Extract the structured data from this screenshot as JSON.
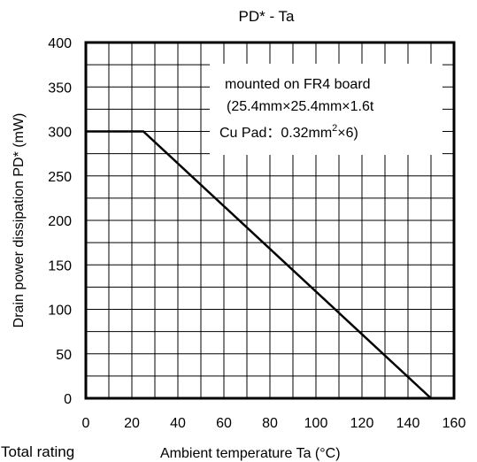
{
  "chart_data": {
    "type": "line",
    "title": "PD* - Ta",
    "xlabel": "Ambient temperature  Ta (°C)",
    "ylabel": "Drain power dissipation  PD* (mW)",
    "xlim": [
      0,
      160
    ],
    "ylim": [
      0,
      400
    ],
    "xticks": [
      0,
      20,
      40,
      60,
      80,
      100,
      120,
      140,
      160
    ],
    "yticks": [
      0,
      50,
      100,
      150,
      200,
      250,
      300,
      350,
      400
    ],
    "grid": true,
    "series": [
      {
        "points": [
          {
            "x": 0,
            "y": 300
          },
          {
            "x": 25,
            "y": 300
          },
          {
            "x": 150,
            "y": 0
          }
        ]
      }
    ],
    "annotation": {
      "line1": "mounted on FR4 board",
      "line2": "(25.4mm×25.4mm×1.6t",
      "line3_prefix": "Cu Pad：0.32mm",
      "line3_sup": "2",
      "line3_suffix": "×6)"
    }
  },
  "footer_label": "Total rating",
  "colors": {
    "line": "#000000",
    "grid": "#000000",
    "background": "#ffffff"
  }
}
